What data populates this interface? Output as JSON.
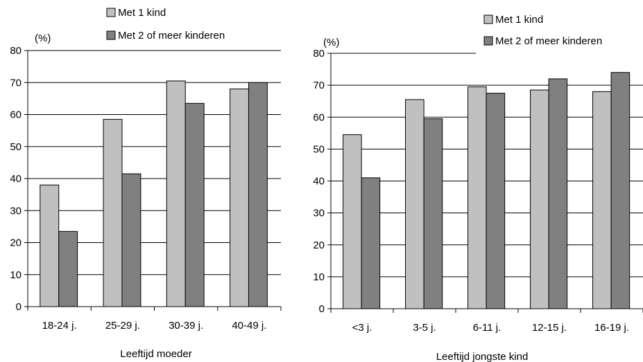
{
  "chart_data": [
    {
      "type": "bar",
      "ylabel": "(%)",
      "xlabel": "Leeftijd moeder",
      "categories": [
        "18-24 j.",
        "25-29 j.",
        "30-39 j.",
        "40-49 j."
      ],
      "series": [
        {
          "name": "Met 1 kind",
          "color": "#c0c0c0",
          "values": [
            38,
            58.5,
            70.5,
            68
          ]
        },
        {
          "name": "Met 2 of meer kinderen",
          "color": "#808080",
          "values": [
            23.5,
            41.5,
            63.5,
            70
          ]
        }
      ],
      "ylim": [
        0,
        80
      ],
      "yticks": [
        "0",
        "10",
        "20",
        "30",
        "40",
        "50",
        "60",
        "70",
        "80"
      ],
      "grid": true,
      "legend": "top"
    },
    {
      "type": "bar",
      "ylabel": "(%)",
      "xlabel": "Leeftijd jongste kind",
      "categories": [
        "<3 j.",
        "3-5 j.",
        "6-11 j.",
        "12-15 j.",
        "16-19 j."
      ],
      "series": [
        {
          "name": "Met 1 kind",
          "color": "#c0c0c0",
          "values": [
            54.5,
            65.5,
            69.5,
            68.5,
            68
          ]
        },
        {
          "name": "Met 2 of meer kinderen",
          "color": "#808080",
          "values": [
            41,
            59.5,
            67.5,
            72,
            74
          ]
        }
      ],
      "ylim": [
        0,
        80
      ],
      "yticks": [
        "0",
        "10",
        "20",
        "30",
        "40",
        "50",
        "60",
        "70",
        "80"
      ],
      "grid": true,
      "legend": "top-right"
    }
  ]
}
